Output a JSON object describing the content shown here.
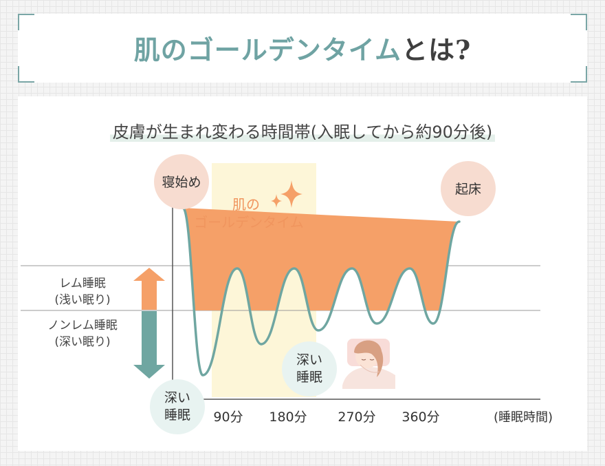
{
  "title": {
    "accent": "肌のゴールデンタイム",
    "rest": "とは?"
  },
  "subtitle": "皮膚が生まれ変わる時間帯(入眠してから約90分後)",
  "chart_data": {
    "type": "line",
    "x_unit_label": "(睡眠時間)",
    "x_ticks": [
      "90分",
      "180分",
      "270分",
      "360分"
    ],
    "y_bands": [
      {
        "line1": "レム睡眠",
        "line2": "(浅い眠り)"
      },
      {
        "line1": "ノンレム睡眠",
        "line2": "(深い眠り)"
      }
    ],
    "golden_time_label": [
      "肌の",
      "ゴールデンタイム"
    ],
    "bubbles": {
      "sleep_start": "寝始め",
      "wake": "起床",
      "deep_sleep_1": [
        "深い",
        "睡眠"
      ],
      "deep_sleep_2": [
        "深い",
        "睡眠"
      ]
    },
    "colors": {
      "curve": "#6fa6a1",
      "rem_fill": "#f5a068",
      "golden_zone": "#fdf6d8",
      "arrow_up": "#f5a068",
      "arrow_down": "#6fa6a1",
      "bubble_pink": "#f7dcd0",
      "bubble_teal": "#e8f3f1"
    }
  }
}
